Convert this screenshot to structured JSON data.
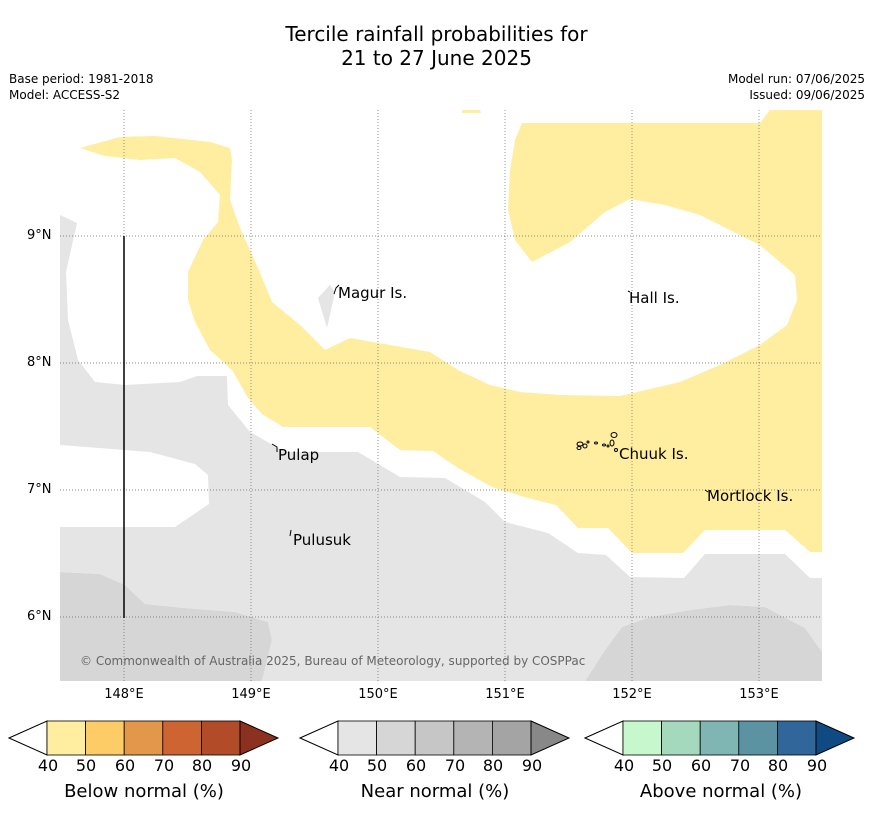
{
  "title": {
    "line1": "Tercile rainfall probabilities for",
    "line2": "21 to 27 June 2025"
  },
  "info": {
    "base_period": "Base period: 1981-2018",
    "model": "Model: ACCESS-S2",
    "model_run": "Model run: 07/06/2025",
    "issued": "Issued: 09/06/2025"
  },
  "map": {
    "lat_labels": [
      "9°N",
      "8°N",
      "7°N",
      "6°N"
    ],
    "lon_labels": [
      "148°E",
      "149°E",
      "150°E",
      "151°E",
      "152°E",
      "153°E"
    ],
    "places": [
      "Magur Is.",
      "Hall Is.",
      "Pulap",
      "Chuuk Is.",
      "Mortlock Is.",
      "Pulusuk"
    ],
    "copyright": "© Commonwealth of Australia 2025, Bureau of Meteorology, supported by COSPPac",
    "colors": {
      "below_40_50": "#ffeda0",
      "near_40_50": "#e5e5e5",
      "near_50_60": "#d6d6d6",
      "gridline": "#666666"
    }
  },
  "legend": {
    "ticks": [
      "40",
      "50",
      "60",
      "70",
      "80",
      "90"
    ],
    "below": {
      "label": "Below normal (%)",
      "colors": [
        "#ffeda0",
        "#fecc67",
        "#e2974a",
        "#ce6431",
        "#b24b27",
        "#8c3020"
      ]
    },
    "near": {
      "label": "Near normal (%)",
      "colors": [
        "#e5e5e5",
        "#d6d6d6",
        "#c6c6c6",
        "#b4b4b4",
        "#a4a4a4",
        "#888888"
      ]
    },
    "above": {
      "label": "Above normal (%)",
      "colors": [
        "#c7f8cd",
        "#a4d9be",
        "#7fb5b2",
        "#5b93a3",
        "#306699",
        "#104a83"
      ]
    }
  }
}
